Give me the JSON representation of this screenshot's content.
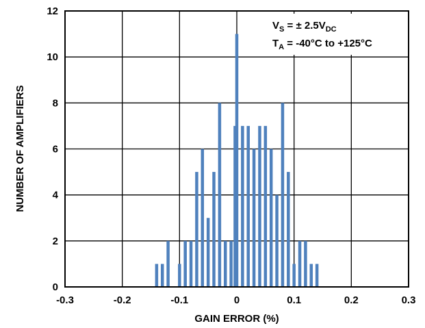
{
  "chart_data": {
    "type": "bar",
    "title": "",
    "xlabel": "GAIN ERROR (%)",
    "ylabel": "NUMBER OF AMPLIFIERS",
    "xlim": [
      -0.3,
      0.3
    ],
    "ylim": [
      0,
      12
    ],
    "x_ticks": [
      -0.3,
      -0.2,
      -0.1,
      0,
      0.1,
      0.2,
      0.3
    ],
    "x_tick_labels": [
      "-0.3",
      "-0.2",
      "-0.1",
      "0",
      "0.1",
      "0.2",
      "0.3"
    ],
    "y_ticks": [
      0,
      2,
      4,
      6,
      8,
      10,
      12
    ],
    "y_tick_labels": [
      "0",
      "2",
      "4",
      "6",
      "8",
      "10",
      "12"
    ],
    "grid": true,
    "bar_color": "#4f81bd",
    "bars": [
      {
        "x": -0.14,
        "y": 1
      },
      {
        "x": -0.13,
        "y": 1
      },
      {
        "x": -0.12,
        "y": 2
      },
      {
        "x": -0.1,
        "y": 1
      },
      {
        "x": -0.09,
        "y": 2
      },
      {
        "x": -0.08,
        "y": 2
      },
      {
        "x": -0.07,
        "y": 5
      },
      {
        "x": -0.06,
        "y": 6
      },
      {
        "x": -0.05,
        "y": 3
      },
      {
        "x": -0.04,
        "y": 5
      },
      {
        "x": -0.03,
        "y": 8
      },
      {
        "x": -0.02,
        "y": 2
      },
      {
        "x": -0.01,
        "y": 2
      },
      {
        "x": -0.003,
        "y": 7
      },
      {
        "x": 0.0,
        "y": 11
      },
      {
        "x": 0.01,
        "y": 7
      },
      {
        "x": 0.02,
        "y": 7
      },
      {
        "x": 0.03,
        "y": 6
      },
      {
        "x": 0.04,
        "y": 7
      },
      {
        "x": 0.05,
        "y": 7
      },
      {
        "x": 0.06,
        "y": 6
      },
      {
        "x": 0.07,
        "y": 4
      },
      {
        "x": 0.08,
        "y": 8
      },
      {
        "x": 0.09,
        "y": 5
      },
      {
        "x": 0.1,
        "y": 1
      },
      {
        "x": 0.11,
        "y": 2
      },
      {
        "x": 0.12,
        "y": 2
      },
      {
        "x": 0.13,
        "y": 1
      },
      {
        "x": 0.14,
        "y": 1
      }
    ],
    "annotations": {
      "vs": {
        "main": "V",
        "sub": "S",
        "mid": " = ± 2.5V",
        "sub2": "DC"
      },
      "ta": {
        "main": "T",
        "sub": "A",
        "rest": " = -40°C to +125°C"
      }
    }
  }
}
